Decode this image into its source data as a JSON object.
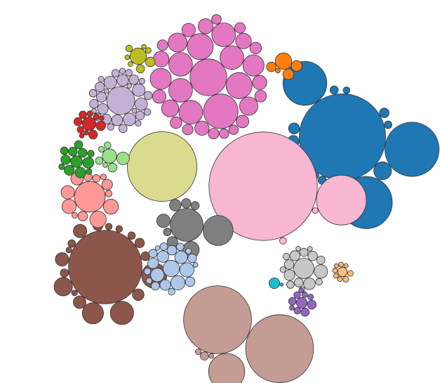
{
  "chart_data": {
    "type": "bubble-pack",
    "title": "",
    "legend": "none",
    "axes": "none",
    "groups": [
      {
        "name": "",
        "color": "#e377c2",
        "values": [
          600,
          530,
          300,
          300,
          250,
          250,
          250,
          250,
          250,
          200,
          200,
          160,
          150,
          130,
          110,
          110,
          100,
          90,
          90,
          80,
          80,
          70,
          60,
          60,
          60,
          50,
          50,
          50,
          50,
          40,
          40,
          40
        ]
      },
      {
        "name": "",
        "color": "#1f77b4",
        "values": [
          3300,
          1300,
          1200,
          850,
          150,
          140,
          60,
          55,
          40,
          30,
          30,
          25,
          20,
          20,
          15
        ]
      },
      {
        "name": "",
        "color": "#f7b6d2",
        "values": [
          5200,
          1100,
          20,
          15
        ]
      },
      {
        "name": "",
        "color": "#dbdb8d",
        "values": [
          2150
        ]
      },
      {
        "name": "",
        "color": "#c5b0d5",
        "values": [
          350,
          70,
          70,
          70,
          70,
          60,
          55,
          50,
          45,
          45,
          40,
          40,
          35,
          35,
          30,
          30,
          25,
          25,
          25,
          20,
          20,
          20,
          15,
          15,
          15,
          15,
          10,
          10,
          10,
          10
        ]
      },
      {
        "name": "",
        "color": "#8c564b",
        "values": [
          2400,
          280,
          240,
          200,
          150,
          80,
          80,
          70,
          60,
          45,
          40,
          35,
          30,
          25,
          25,
          20,
          20,
          15,
          15
        ]
      },
      {
        "name": "",
        "color": "#c49c94",
        "values": [
          2050,
          2050,
          580,
          30,
          15,
          10
        ]
      },
      {
        "name": "",
        "color": "#ff9896",
        "values": [
          420,
          120,
          100,
          90,
          80,
          70,
          50,
          40,
          30,
          25,
          20,
          15,
          15
        ]
      },
      {
        "name": "",
        "color": "#7f7f7f",
        "values": [
          480,
          400,
          120,
          80,
          60,
          50,
          40,
          30,
          25
        ]
      },
      {
        "name": "",
        "color": "#aec7e8",
        "values": [
          120,
          90,
          90,
          80,
          70,
          60,
          50,
          50,
          40,
          40,
          35,
          30,
          30,
          25,
          25,
          20,
          20,
          15,
          15,
          10,
          10
        ]
      },
      {
        "name": "",
        "color": "#c7c7c7",
        "values": [
          180,
          80,
          60,
          50,
          45,
          40,
          40,
          35,
          30,
          30,
          25,
          20,
          20,
          15,
          15,
          10,
          10
        ]
      },
      {
        "name": "",
        "color": "#2ca02c",
        "values": [
          60,
          55,
          50,
          45,
          40,
          35,
          35,
          30,
          25,
          20,
          15,
          15
        ]
      },
      {
        "name": "",
        "color": "#d62728",
        "values": [
          80,
          40,
          35,
          30,
          25,
          20,
          15,
          15,
          10,
          10,
          10
        ]
      },
      {
        "name": "",
        "color": "#98df8a",
        "values": [
          90,
          70,
          35,
          25,
          20,
          15,
          10
        ]
      },
      {
        "name": "",
        "color": "#bcbd22",
        "values": [
          120,
          40,
          30,
          20,
          15,
          10,
          10,
          10
        ]
      },
      {
        "name": "",
        "color": "#ff7f0e",
        "values": [
          120,
          50,
          50,
          40,
          10
        ]
      },
      {
        "name": "",
        "color": "#ffbb78",
        "values": [
          40,
          15,
          15,
          10,
          10,
          10,
          10,
          8,
          8
        ]
      },
      {
        "name": "",
        "color": "#9467bd",
        "values": [
          50,
          35,
          30,
          25,
          20,
          20,
          15,
          15,
          10,
          10
        ]
      },
      {
        "name": "",
        "color": "#17becf",
        "values": [
          50,
          5
        ]
      }
    ]
  }
}
